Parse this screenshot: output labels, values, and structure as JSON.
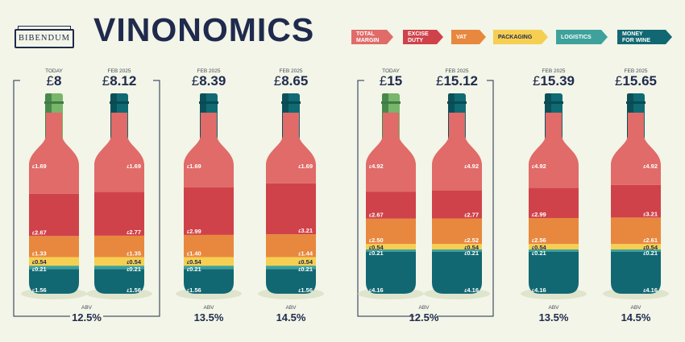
{
  "brand": "BIBENDUM",
  "title": "VINONOMICS",
  "legend": [
    {
      "id": "total_margin",
      "lines": [
        "TOTAL",
        "MARGIN"
      ],
      "color": "#e06b68"
    },
    {
      "id": "excise_duty",
      "lines": [
        "EXCISE",
        "DUTY"
      ],
      "color": "#d0424a"
    },
    {
      "id": "vat",
      "lines": [
        "VAT"
      ],
      "color": "#e8883e"
    },
    {
      "id": "packaging",
      "lines": [
        "PACKAGING"
      ],
      "color": "#f6cf52"
    },
    {
      "id": "logistics",
      "lines": [
        "LOGISTICS"
      ],
      "color": "#3ea19c"
    },
    {
      "id": "money_for_wine",
      "lines": [
        "MONEY",
        "FOR WINE"
      ],
      "color": "#116872"
    }
  ],
  "colors": {
    "background": "#f2f5e7",
    "navy": "#1f2a4d",
    "neck_today": "#79b56a",
    "neck_today_dark": "#3d7d45",
    "neck_feb": "#0f6a73",
    "neck_feb_dark": "#0a4a52",
    "shadow": "#dfe4cd"
  },
  "currency_symbol": "£",
  "abv_caption": "ABV",
  "chart_data": {
    "type": "bar",
    "stacked": true,
    "series_order": [
      "money_for_wine",
      "logistics",
      "packaging",
      "vat",
      "excise_duty",
      "total_margin"
    ],
    "groups": [
      {
        "bottles": [
          {
            "label": "TODAY",
            "price": "8",
            "today": true,
            "values": {
              "money_for_wine": 1.56,
              "logistics": 0.21,
              "packaging": 0.54,
              "vat": 1.33,
              "excise_duty": 2.67,
              "total_margin": 1.69
            },
            "abv": "12.5%"
          },
          {
            "label": "FEB 2025",
            "price": "8.12",
            "today": false,
            "values": {
              "money_for_wine": 1.56,
              "logistics": 0.21,
              "packaging": 0.54,
              "vat": 1.35,
              "excise_duty": 2.77,
              "total_margin": 1.69
            },
            "abv": "12.5%"
          },
          {
            "label": "FEB 2025",
            "price": "8.39",
            "today": false,
            "values": {
              "money_for_wine": 1.56,
              "logistics": 0.21,
              "packaging": 0.54,
              "vat": 1.4,
              "excise_duty": 2.99,
              "total_margin": 1.69
            },
            "abv": "13.5%"
          },
          {
            "label": "FEB 2025",
            "price": "8.65",
            "today": false,
            "values": {
              "money_for_wine": 1.56,
              "logistics": 0.21,
              "packaging": 0.54,
              "vat": 1.44,
              "excise_duty": 3.21,
              "total_margin": 1.69
            },
            "abv": "14.5%"
          }
        ]
      },
      {
        "bottles": [
          {
            "label": "TODAY",
            "price": "15",
            "today": true,
            "values": {
              "money_for_wine": 4.16,
              "logistics": 0.21,
              "packaging": 0.54,
              "vat": 2.5,
              "excise_duty": 2.67,
              "total_margin": 4.92
            },
            "abv": "12.5%"
          },
          {
            "label": "FEB 2025",
            "price": "15.12",
            "today": false,
            "values": {
              "money_for_wine": 4.16,
              "logistics": 0.21,
              "packaging": 0.54,
              "vat": 2.52,
              "excise_duty": 2.77,
              "total_margin": 4.92
            },
            "abv": "12.5%"
          },
          {
            "label": "FEB 2025",
            "price": "15.39",
            "today": false,
            "values": {
              "money_for_wine": 4.16,
              "logistics": 0.21,
              "packaging": 0.54,
              "vat": 2.56,
              "excise_duty": 2.99,
              "total_margin": 4.92
            },
            "abv": "13.5%"
          },
          {
            "label": "FEB 2025",
            "price": "15.65",
            "today": false,
            "values": {
              "money_for_wine": 4.16,
              "logistics": 0.21,
              "packaging": 0.54,
              "vat": 2.61,
              "excise_duty": 3.21,
              "total_margin": 4.92
            },
            "abv": "14.5%"
          }
        ]
      }
    ]
  }
}
